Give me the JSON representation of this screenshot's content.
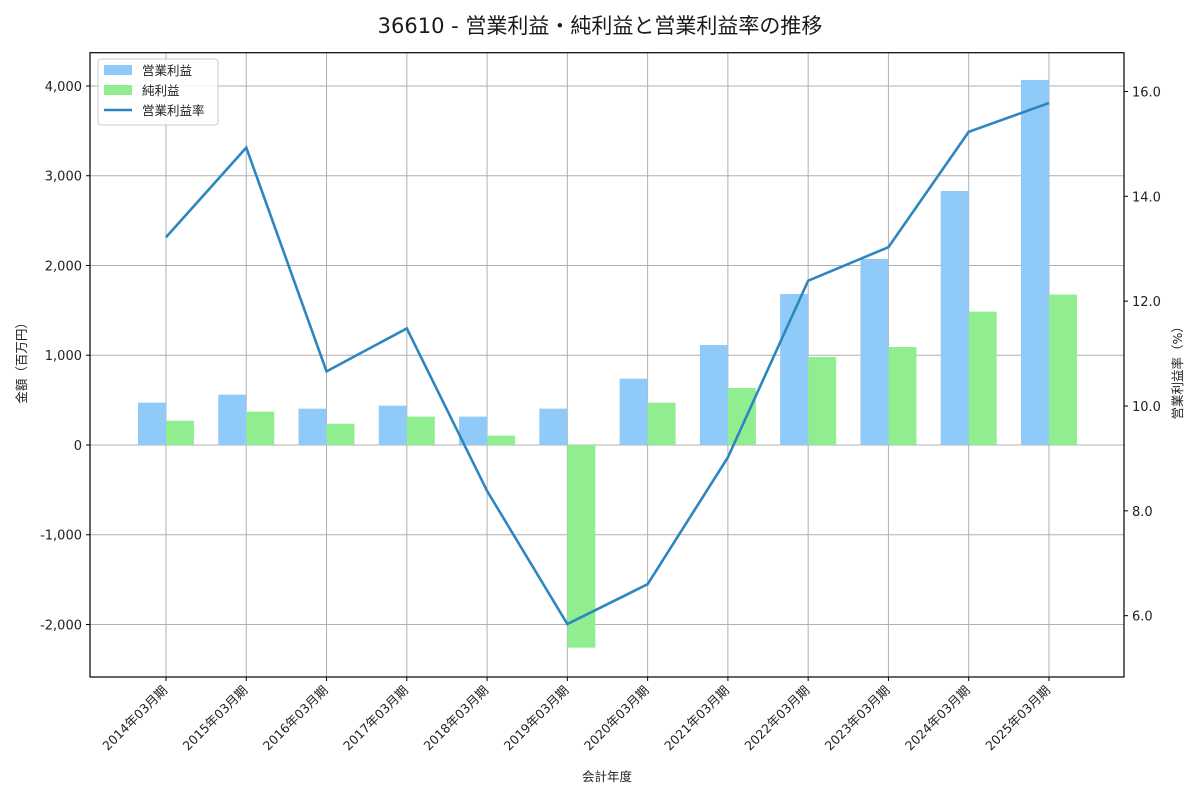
{
  "chart_data": {
    "type": "bar",
    "title": "36610 - 営業利益・純利益と営業利益率の推移",
    "xlabel": "会計年度",
    "ylabel": "金額（百万円）",
    "ylabel_right": "営業利益率（%）",
    "categories": [
      "2014年03月期",
      "2015年03月期",
      "2016年03月期",
      "2017年03月期",
      "2018年03月期",
      "2019年03月期",
      "2020年03月期",
      "2021年03月期",
      "2022年03月期",
      "2023年03月期",
      "2024年03月期",
      "2025年03月期"
    ],
    "series": [
      {
        "name": "営業利益",
        "type": "bar",
        "axis": "left",
        "color": "#90caf9",
        "values": [
          471,
          561,
          405,
          438,
          316,
          405,
          739,
          1114,
          1682,
          2072,
          2830,
          4067
        ]
      },
      {
        "name": "純利益",
        "type": "bar",
        "axis": "left",
        "color": "#90ee90",
        "values": [
          271,
          371,
          237,
          316,
          104,
          -2258,
          471,
          635,
          980,
          1092,
          1486,
          1676
        ]
      },
      {
        "name": "営業利益率",
        "type": "line",
        "axis": "right",
        "color": "#2e86c1",
        "values": [
          13.22,
          14.93,
          10.66,
          11.48,
          8.38,
          5.84,
          6.6,
          9.02,
          12.39,
          13.03,
          15.23,
          15.78
        ]
      }
    ],
    "ylim": [
      -2585,
      4371
    ],
    "ylim_right": [
      4.83,
      16.74
    ],
    "yticks": [
      -2000,
      -1000,
      0,
      1000,
      2000,
      3000,
      4000
    ],
    "yticklabels": [
      "-2,000",
      "-1,000",
      "0",
      "1,000",
      "2,000",
      "3,000",
      "4,000"
    ],
    "yticks_right": [
      6.0,
      8.0,
      10.0,
      12.0,
      14.0,
      16.0
    ],
    "yticklabels_right": [
      "6.0",
      "8.0",
      "10.0",
      "12.0",
      "14.0",
      "16.0"
    ],
    "grid": true,
    "legend_position": "upper left"
  },
  "legend": {
    "items": [
      {
        "label": "営業利益",
        "kind": "patch",
        "color": "#90caf9"
      },
      {
        "label": "純利益",
        "kind": "patch",
        "color": "#90ee90"
      },
      {
        "label": "営業利益率",
        "kind": "line",
        "color": "#2e86c1"
      }
    ]
  }
}
